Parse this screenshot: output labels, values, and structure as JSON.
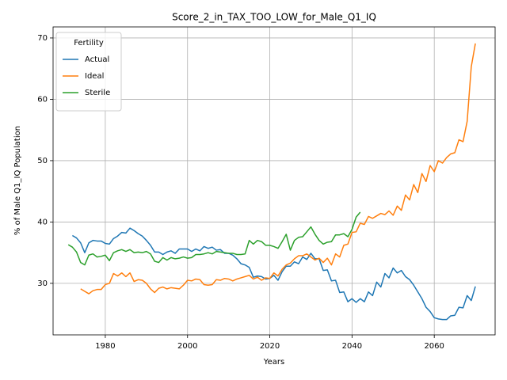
{
  "chart_data": {
    "type": "line",
    "title": "Score_2_in_TAX_TOO_LOW_for_Male_Q1_IQ",
    "xlabel": "Years",
    "ylabel": "% of Male Q1_IQ Population",
    "legend_title": "Fertility",
    "legend": "upper left",
    "grid": true,
    "xlim": [
      1967.3,
      2074.8
    ],
    "ylim": [
      21.6,
      71.8
    ],
    "xticks": [
      1980,
      2000,
      2020,
      2040,
      2060
    ],
    "yticks": [
      30,
      40,
      50,
      60,
      70
    ],
    "x": [
      1971,
      1972,
      1973,
      1974,
      1975,
      1976,
      1977,
      1978,
      1979,
      1980,
      1981,
      1982,
      1983,
      1984,
      1985,
      1986,
      1987,
      1988,
      1989,
      1990,
      1991,
      1992,
      1993,
      1994,
      1995,
      1996,
      1997,
      1998,
      1999,
      2000,
      2001,
      2002,
      2003,
      2004,
      2005,
      2006,
      2007,
      2008,
      2009,
      2010,
      2011,
      2012,
      2013,
      2014,
      2015,
      2016,
      2017,
      2018,
      2019,
      2020,
      2021,
      2022,
      2023,
      2024,
      2025,
      2026,
      2027,
      2028,
      2029,
      2030,
      2031,
      2032,
      2033,
      2034,
      2035,
      2036,
      2037,
      2038,
      2039,
      2040,
      2041,
      2042,
      2043,
      2044,
      2045,
      2046,
      2047,
      2048,
      2049,
      2050,
      2051,
      2052,
      2053,
      2054,
      2055,
      2056,
      2057,
      2058,
      2059,
      2060,
      2061,
      2062,
      2063,
      2064,
      2065,
      2066,
      2067,
      2068,
      2069,
      2070
    ],
    "series": [
      {
        "name": "Actual",
        "color": "#1f77b4",
        "values": [
          null,
          37.8,
          37.4,
          36.6,
          35.0,
          36.6,
          37.0,
          36.9,
          36.9,
          36.5,
          36.4,
          37.3,
          37.7,
          38.3,
          38.2,
          39.0,
          38.6,
          38.1,
          37.7,
          37.0,
          36.2,
          35.1,
          35.1,
          34.7,
          35.1,
          35.3,
          34.9,
          35.6,
          35.6,
          35.6,
          35.2,
          35.6,
          35.3,
          36.0,
          35.7,
          35.9,
          35.4,
          35.5,
          34.9,
          34.9,
          34.6,
          34.0,
          33.2,
          33.0,
          32.6,
          31.0,
          31.2,
          31.1,
          30.7,
          30.8,
          31.3,
          30.5,
          31.9,
          32.8,
          32.8,
          33.5,
          33.2,
          34.3,
          33.9,
          34.9,
          34.0,
          34.0,
          32.1,
          32.2,
          30.4,
          30.5,
          28.5,
          28.6,
          27.0,
          27.5,
          26.9,
          27.5,
          27.0,
          28.6,
          28.0,
          30.2,
          29.4,
          31.6,
          30.9,
          32.5,
          31.7,
          32.1,
          31.1,
          30.6,
          29.7,
          28.6,
          27.5,
          26.1,
          25.4,
          24.4,
          24.2,
          24.1,
          24.1,
          24.7,
          24.8,
          26.1,
          26.0,
          28.0,
          27.2,
          29.5
        ]
      },
      {
        "name": "Ideal",
        "color": "#ff7f0e",
        "values": [
          null,
          null,
          null,
          29.1,
          28.7,
          28.3,
          28.8,
          29.0,
          29.0,
          29.8,
          30.0,
          31.6,
          31.2,
          31.7,
          31.1,
          31.7,
          30.3,
          30.6,
          30.5,
          30.0,
          29.1,
          28.5,
          29.2,
          29.4,
          29.1,
          29.3,
          29.2,
          29.1,
          29.7,
          30.5,
          30.4,
          30.7,
          30.6,
          29.8,
          29.7,
          29.8,
          30.6,
          30.5,
          30.8,
          30.7,
          30.4,
          30.7,
          30.9,
          31.1,
          31.3,
          30.7,
          31.0,
          30.5,
          30.9,
          30.8,
          31.7,
          31.2,
          32.3,
          33.0,
          33.3,
          34.0,
          34.5,
          34.5,
          34.8,
          34.3,
          33.8,
          34.1,
          33.4,
          34.1,
          33.0,
          34.8,
          34.3,
          36.2,
          36.4,
          38.3,
          38.4,
          39.8,
          39.6,
          40.9,
          40.6,
          41.0,
          41.4,
          41.2,
          41.8,
          41.1,
          42.6,
          41.9,
          44.4,
          43.6,
          46.1,
          44.8,
          47.9,
          46.6,
          49.2,
          48.2,
          50.0,
          49.6,
          50.5,
          51.1,
          51.3,
          53.4,
          53.1,
          56.4,
          65.3,
          69.1
        ]
      },
      {
        "name": "Sterile",
        "color": "#2ca02c",
        "values": [
          36.3,
          35.9,
          35.1,
          33.4,
          33.0,
          34.6,
          34.8,
          34.3,
          34.4,
          34.6,
          33.7,
          35.0,
          35.3,
          35.5,
          35.2,
          35.5,
          35.0,
          35.1,
          35.0,
          35.2,
          34.8,
          33.6,
          33.4,
          34.2,
          33.8,
          34.2,
          34.0,
          34.1,
          34.3,
          34.1,
          34.2,
          34.7,
          34.7,
          34.8,
          35.0,
          34.8,
          35.2,
          35.1,
          35.0,
          34.9,
          34.9,
          34.7,
          34.7,
          34.8,
          37.0,
          36.4,
          37.0,
          36.8,
          36.2,
          36.2,
          36.0,
          35.7,
          36.8,
          38.0,
          35.4,
          37.0,
          37.5,
          37.6,
          38.4,
          39.2,
          38.0,
          37.0,
          36.4,
          36.7,
          36.8,
          37.9,
          37.9,
          38.1,
          37.6,
          38.8,
          40.8,
          41.6,
          null,
          null,
          null,
          null,
          null,
          null,
          null,
          null,
          null,
          null,
          null,
          null,
          null,
          null,
          null,
          null,
          null,
          null,
          null,
          null,
          null,
          null,
          null,
          null,
          null,
          null,
          null,
          null
        ]
      }
    ]
  }
}
